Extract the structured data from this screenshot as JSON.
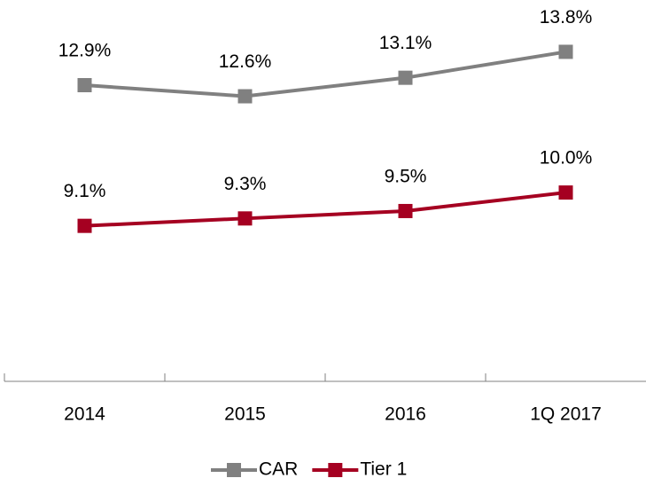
{
  "chart_data": {
    "type": "line",
    "categories": [
      "2014",
      "2015",
      "2016",
      "1Q 2017"
    ],
    "series": [
      {
        "name": "CAR",
        "color": "#808080",
        "values": [
          12.9,
          12.6,
          13.1,
          13.8
        ],
        "value_labels": [
          "12.9%",
          "12.6%",
          "13.1%",
          "13.8%"
        ]
      },
      {
        "name": "Tier 1",
        "color": "#a50021",
        "values": [
          9.1,
          9.3,
          9.5,
          10.0
        ],
        "value_labels": [
          "9.1%",
          "9.3%",
          "9.5%",
          "10.0%"
        ]
      }
    ],
    "ylim": [
      4.9,
      15.2
    ],
    "grid": false,
    "legend": "bottom"
  }
}
